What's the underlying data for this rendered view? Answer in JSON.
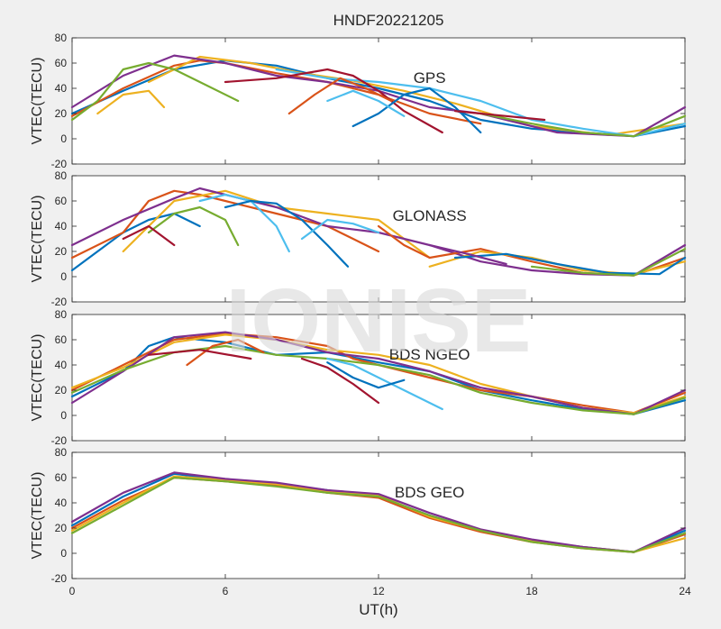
{
  "figure": {
    "title": "HNDF20221205",
    "xlabel": "UT(h)",
    "watermark": "IONISE",
    "colors": [
      "#0072BD",
      "#D95319",
      "#EDB120",
      "#7E2F8E",
      "#77AC30",
      "#4DBEEE",
      "#A2142F"
    ]
  },
  "chart_data": [
    {
      "type": "line",
      "title": "GPS",
      "ylabel": "VTEC(TECU)",
      "xlim": [
        0,
        24
      ],
      "ylim": [
        -20,
        80
      ],
      "xticks": [
        0,
        6,
        12,
        18,
        24
      ],
      "yticks": [
        -20,
        0,
        20,
        40,
        60,
        80
      ],
      "series": [
        {
          "color": "#0072BD",
          "x": [
            0,
            2,
            4,
            6,
            8,
            10,
            12,
            14,
            16,
            18,
            20,
            22,
            24
          ],
          "y": [
            20,
            38,
            55,
            62,
            58,
            48,
            40,
            30,
            15,
            8,
            5,
            2,
            10
          ]
        },
        {
          "color": "#D95319",
          "x": [
            0,
            2,
            4,
            5,
            6,
            8,
            10,
            12,
            14,
            16
          ],
          "y": [
            18,
            40,
            58,
            62,
            60,
            52,
            45,
            35,
            20,
            12
          ]
        },
        {
          "color": "#EDB120",
          "x": [
            3,
            5,
            7,
            9,
            11,
            13,
            15,
            18,
            21,
            24
          ],
          "y": [
            45,
            65,
            60,
            52,
            46,
            38,
            28,
            10,
            3,
            12
          ]
        },
        {
          "color": "#7E2F8E",
          "x": [
            0,
            2,
            4,
            6,
            8,
            10,
            12,
            14,
            16,
            19,
            22,
            24
          ],
          "y": [
            25,
            50,
            66,
            60,
            50,
            45,
            38,
            25,
            20,
            5,
            2,
            25
          ]
        },
        {
          "color": "#77AC30",
          "x": [
            0,
            1,
            2,
            3,
            4,
            5,
            6.5
          ],
          "y": [
            15,
            30,
            55,
            60,
            55,
            45,
            30
          ]
        },
        {
          "color": "#4DBEEE",
          "x": [
            8,
            10,
            12,
            14,
            16,
            18,
            20,
            22,
            24
          ],
          "y": [
            55,
            48,
            45,
            40,
            30,
            15,
            8,
            2,
            12
          ]
        },
        {
          "color": "#A2142F",
          "x": [
            6,
            8,
            10,
            11,
            12,
            13,
            14.5
          ],
          "y": [
            45,
            48,
            55,
            50,
            38,
            22,
            5
          ]
        },
        {
          "color": "#0072BD",
          "x": [
            11,
            12,
            13,
            14,
            15,
            16
          ],
          "y": [
            10,
            20,
            35,
            40,
            25,
            5
          ]
        },
        {
          "color": "#D95319",
          "x": [
            8.5,
            9.5,
            10.5,
            11.5,
            12.5
          ],
          "y": [
            20,
            35,
            48,
            40,
            30
          ]
        },
        {
          "color": "#77AC30",
          "x": [
            16,
            18,
            20,
            22,
            24
          ],
          "y": [
            20,
            12,
            5,
            2,
            18
          ]
        },
        {
          "color": "#EDB120",
          "x": [
            1,
            2,
            3,
            3.6
          ],
          "y": [
            20,
            35,
            38,
            25
          ]
        },
        {
          "color": "#A2142F",
          "x": [
            15,
            17,
            18.5
          ],
          "y": [
            22,
            18,
            15
          ]
        },
        {
          "color": "#4DBEEE",
          "x": [
            10,
            11,
            12,
            13
          ],
          "y": [
            30,
            38,
            30,
            18
          ]
        }
      ]
    },
    {
      "type": "line",
      "title": "GLONASS",
      "ylabel": "VTEC(TECU)",
      "xlim": [
        0,
        24
      ],
      "ylim": [
        -20,
        80
      ],
      "xticks": [
        0,
        6,
        12,
        18,
        24
      ],
      "yticks": [
        -20,
        0,
        20,
        40,
        60,
        80
      ],
      "series": [
        {
          "color": "#0072BD",
          "x": [
            0,
            1,
            2,
            3,
            4,
            5
          ],
          "y": [
            5,
            20,
            35,
            45,
            50,
            40
          ]
        },
        {
          "color": "#D95319",
          "x": [
            0,
            2,
            3,
            4,
            5,
            6,
            8,
            10,
            11,
            12
          ],
          "y": [
            15,
            35,
            60,
            68,
            65,
            60,
            50,
            40,
            30,
            20
          ]
        },
        {
          "color": "#EDB120",
          "x": [
            2,
            4,
            6,
            8,
            10,
            12,
            13,
            14
          ],
          "y": [
            20,
            60,
            68,
            55,
            50,
            45,
            30,
            15
          ]
        },
        {
          "color": "#7E2F8E",
          "x": [
            0,
            2,
            4,
            5,
            6,
            8,
            10,
            12,
            14,
            16,
            18,
            20,
            22,
            24
          ],
          "y": [
            25,
            45,
            62,
            70,
            65,
            55,
            40,
            35,
            25,
            12,
            5,
            2,
            1,
            25
          ]
        },
        {
          "color": "#77AC30",
          "x": [
            3,
            4,
            5,
            6,
            6.5
          ],
          "y": [
            35,
            50,
            55,
            45,
            25
          ]
        },
        {
          "color": "#4DBEEE",
          "x": [
            5,
            6,
            7,
            8,
            8.5
          ],
          "y": [
            60,
            65,
            60,
            40,
            20
          ]
        },
        {
          "color": "#0072BD",
          "x": [
            6,
            7,
            8,
            9,
            10,
            10.8
          ],
          "y": [
            55,
            60,
            58,
            45,
            25,
            8
          ]
        },
        {
          "color": "#D95319",
          "x": [
            12,
            13,
            14,
            16,
            18,
            20,
            22,
            24
          ],
          "y": [
            40,
            25,
            15,
            22,
            12,
            3,
            1,
            15
          ]
        },
        {
          "color": "#EDB120",
          "x": [
            14,
            16,
            18,
            20,
            22,
            24
          ],
          "y": [
            8,
            20,
            15,
            5,
            2,
            12
          ]
        },
        {
          "color": "#0072BD",
          "x": [
            15,
            17,
            19,
            21,
            23,
            24
          ],
          "y": [
            15,
            18,
            10,
            3,
            2,
            15
          ]
        },
        {
          "color": "#77AC30",
          "x": [
            18,
            20,
            22,
            24
          ],
          "y": [
            8,
            3,
            1,
            22
          ]
        },
        {
          "color": "#A2142F",
          "x": [
            2,
            3,
            4
          ],
          "y": [
            30,
            40,
            25
          ]
        },
        {
          "color": "#4DBEEE",
          "x": [
            9,
            10,
            11,
            12
          ],
          "y": [
            30,
            45,
            42,
            35
          ]
        },
        {
          "color": "#7E2F8E",
          "x": [
            14,
            15.5,
            17
          ],
          "y": [
            25,
            18,
            10
          ]
        }
      ]
    },
    {
      "type": "line",
      "title": "BDS NGEO",
      "ylabel": "VTEC(TECU)",
      "xlim": [
        0,
        24
      ],
      "ylim": [
        -20,
        80
      ],
      "xticks": [
        0,
        6,
        12,
        18,
        24
      ],
      "yticks": [
        -20,
        0,
        20,
        40,
        60,
        80
      ],
      "series": [
        {
          "color": "#0072BD",
          "x": [
            0,
            2,
            3,
            4,
            6,
            8,
            10,
            12,
            14,
            16,
            18,
            20,
            22,
            24
          ],
          "y": [
            15,
            35,
            55,
            62,
            58,
            48,
            50,
            42,
            35,
            20,
            12,
            5,
            1,
            12
          ]
        },
        {
          "color": "#D95319",
          "x": [
            0,
            2,
            4,
            6,
            8,
            10,
            11,
            12,
            14,
            16,
            18,
            20,
            22,
            24
          ],
          "y": [
            20,
            40,
            60,
            65,
            62,
            55,
            45,
            40,
            30,
            20,
            15,
            8,
            2,
            18
          ]
        },
        {
          "color": "#EDB120",
          "x": [
            0,
            2,
            4,
            6,
            8,
            10,
            12,
            14,
            16,
            18,
            20,
            22,
            24
          ],
          "y": [
            22,
            38,
            58,
            64,
            60,
            52,
            48,
            40,
            25,
            15,
            6,
            2,
            15
          ]
        },
        {
          "color": "#7E2F8E",
          "x": [
            0,
            2,
            4,
            6,
            8,
            10,
            12,
            14,
            16,
            18,
            20,
            22,
            24
          ],
          "y": [
            10,
            35,
            62,
            66,
            60,
            50,
            45,
            35,
            22,
            15,
            6,
            1,
            20
          ]
        },
        {
          "color": "#77AC30",
          "x": [
            0,
            2,
            4,
            6,
            8,
            10,
            12,
            14,
            16,
            18,
            20,
            22,
            24
          ],
          "y": [
            18,
            36,
            50,
            55,
            48,
            45,
            40,
            32,
            18,
            10,
            4,
            1,
            14
          ]
        },
        {
          "color": "#4DBEEE",
          "x": [
            10,
            11,
            12,
            13,
            14.5
          ],
          "y": [
            45,
            40,
            30,
            20,
            5
          ]
        },
        {
          "color": "#A2142F",
          "x": [
            9,
            10,
            11,
            12
          ],
          "y": [
            45,
            38,
            25,
            10
          ]
        },
        {
          "color": "#0072BD",
          "x": [
            10,
            11,
            12,
            13
          ],
          "y": [
            42,
            30,
            22,
            28
          ]
        },
        {
          "color": "#D95319",
          "x": [
            4.5,
            5.5,
            6.5,
            7.5
          ],
          "y": [
            40,
            55,
            60,
            50
          ]
        },
        {
          "color": "#A2142F",
          "x": [
            3,
            5,
            7
          ],
          "y": [
            48,
            52,
            45
          ]
        }
      ]
    },
    {
      "type": "line",
      "title": "BDS GEO",
      "ylabel": "VTEC(TECU)",
      "xlim": [
        0,
        24
      ],
      "ylim": [
        -20,
        80
      ],
      "xticks": [
        0,
        6,
        12,
        18,
        24
      ],
      "yticks": [
        -20,
        0,
        20,
        40,
        60,
        80
      ],
      "series": [
        {
          "color": "#0072BD",
          "x": [
            0,
            2,
            4,
            6,
            8,
            10,
            12,
            14,
            16,
            18,
            20,
            22,
            24
          ],
          "y": [
            22,
            45,
            63,
            58,
            55,
            50,
            45,
            30,
            18,
            10,
            5,
            1,
            18
          ]
        },
        {
          "color": "#D95319",
          "x": [
            0,
            2,
            4,
            6,
            8,
            10,
            12,
            14,
            16,
            18,
            20,
            22,
            24
          ],
          "y": [
            20,
            42,
            60,
            57,
            54,
            48,
            44,
            28,
            17,
            9,
            4,
            1,
            15
          ]
        },
        {
          "color": "#EDB120",
          "x": [
            0,
            2,
            4,
            6,
            8,
            10,
            12,
            14,
            16,
            18,
            20,
            22,
            24
          ],
          "y": [
            18,
            40,
            61,
            58,
            55,
            49,
            46,
            29,
            18,
            10,
            5,
            1,
            12
          ]
        },
        {
          "color": "#7E2F8E",
          "x": [
            0,
            2,
            4,
            6,
            8,
            10,
            12,
            14,
            16,
            18,
            20,
            22,
            24
          ],
          "y": [
            25,
            48,
            64,
            59,
            56,
            50,
            47,
            32,
            19,
            11,
            5,
            1,
            20
          ]
        },
        {
          "color": "#77AC30",
          "x": [
            0,
            2,
            4,
            6,
            8,
            10,
            12,
            14,
            16,
            18,
            20,
            22,
            24
          ],
          "y": [
            16,
            38,
            60,
            57,
            53,
            48,
            45,
            30,
            18,
            9,
            4,
            1,
            16
          ]
        }
      ]
    }
  ]
}
